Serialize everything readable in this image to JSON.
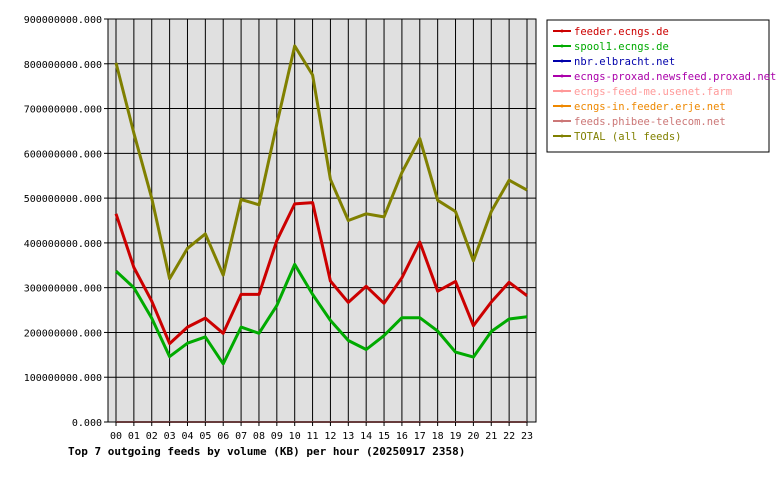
{
  "chart_data": {
    "type": "line",
    "title": "Top 7 outgoing feeds by volume (KB) per hour (20250917 2358)",
    "x": [
      "00",
      "01",
      "02",
      "03",
      "04",
      "05",
      "06",
      "07",
      "08",
      "09",
      "10",
      "11",
      "12",
      "13",
      "14",
      "15",
      "16",
      "17",
      "18",
      "19",
      "20",
      "21",
      "22",
      "23"
    ],
    "ylim": [
      0,
      900000000
    ],
    "yticks": [
      {
        "value": 0,
        "label": "0.000"
      },
      {
        "value": 100000000,
        "label": "100000000.000"
      },
      {
        "value": 200000000,
        "label": "200000000.000"
      },
      {
        "value": 300000000,
        "label": "300000000.000"
      },
      {
        "value": 400000000,
        "label": "400000000.000"
      },
      {
        "value": 500000000,
        "label": "500000000.000"
      },
      {
        "value": 600000000,
        "label": "600000000.000"
      },
      {
        "value": 700000000,
        "label": "700000000.000"
      },
      {
        "value": 800000000,
        "label": "800000000.000"
      },
      {
        "value": 900000000,
        "label": "900000000.000"
      }
    ],
    "grid": true,
    "legend_position": "right",
    "series": [
      {
        "name": "feeder.ecngs.de",
        "color": "#cc0000",
        "values": [
          465000000,
          345000000,
          270000000,
          175000000,
          212000000,
          232000000,
          198000000,
          285000000,
          285000000,
          405000000,
          487000000,
          490000000,
          315000000,
          267000000,
          303000000,
          265000000,
          322000000,
          402000000,
          292000000,
          314000000,
          215000000,
          268000000,
          312000000,
          282000000
        ]
      },
      {
        "name": "spool1.ecngs.de",
        "color": "#00aa00",
        "values": [
          337000000,
          300000000,
          232000000,
          146000000,
          176000000,
          190000000,
          130000000,
          212000000,
          198000000,
          260000000,
          352000000,
          285000000,
          227000000,
          182000000,
          162000000,
          193000000,
          233000000,
          233000000,
          203000000,
          156000000,
          145000000,
          202000000,
          230000000,
          235000000
        ]
      },
      {
        "name": "nbr.elbracht.net",
        "color": "#0000aa",
        "values": [
          0,
          0,
          0,
          0,
          0,
          0,
          0,
          0,
          0,
          0,
          0,
          0,
          0,
          0,
          0,
          0,
          0,
          0,
          0,
          0,
          0,
          0,
          0,
          0
        ]
      },
      {
        "name": "ecngs-proxad.newsfeed.proxad.net",
        "color": "#aa00aa",
        "values": [
          0,
          0,
          0,
          0,
          0,
          0,
          0,
          0,
          0,
          0,
          0,
          0,
          0,
          0,
          0,
          0,
          0,
          0,
          0,
          0,
          0,
          0,
          0,
          0
        ]
      },
      {
        "name": "ecngs-feed-me.usenet.farm",
        "color": "#ff9999",
        "values": [
          0,
          0,
          0,
          0,
          0,
          0,
          0,
          0,
          0,
          0,
          0,
          0,
          0,
          0,
          0,
          0,
          0,
          0,
          0,
          0,
          0,
          0,
          0,
          0
        ]
      },
      {
        "name": "ecngs-in.feeder.erje.net",
        "color": "#ee8800",
        "values": [
          0,
          0,
          0,
          0,
          0,
          0,
          0,
          0,
          0,
          0,
          0,
          0,
          0,
          0,
          0,
          0,
          0,
          0,
          0,
          0,
          0,
          0,
          0,
          0
        ]
      },
      {
        "name": "feeds.phibee-telecom.net",
        "color": "#cc7777",
        "values": [
          0,
          0,
          0,
          0,
          0,
          0,
          0,
          0,
          0,
          0,
          0,
          0,
          0,
          0,
          0,
          0,
          0,
          0,
          0,
          0,
          0,
          0,
          0,
          0
        ]
      },
      {
        "name": "TOTAL (all feeds)",
        "color": "#808000",
        "values": [
          802000000,
          645000000,
          500000000,
          320000000,
          388000000,
          420000000,
          328000000,
          497000000,
          485000000,
          665000000,
          840000000,
          775000000,
          542000000,
          450000000,
          465000000,
          458000000,
          557000000,
          633000000,
          495000000,
          470000000,
          360000000,
          470000000,
          540000000,
          518000000
        ]
      }
    ]
  }
}
